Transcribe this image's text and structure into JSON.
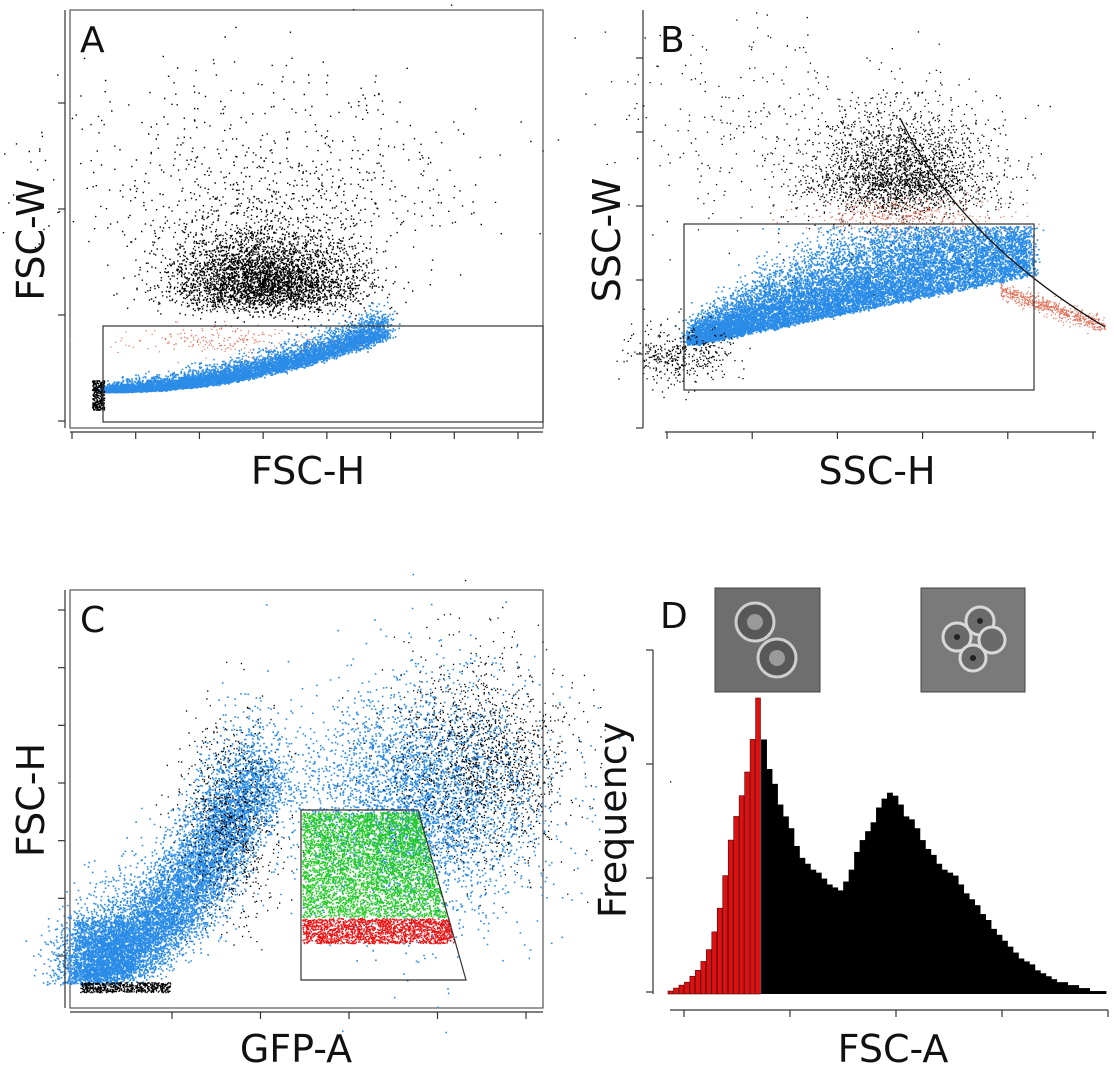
{
  "chart_data": [
    {
      "panel": "A",
      "type": "scatter",
      "xlabel": "FSC-H",
      "ylabel": "FSC-W",
      "x_ticks": 8,
      "y_ticks": 4,
      "colors": {
        "outside": "#000000",
        "gated": "#2b8ce8",
        "minor": "#e0705a"
      },
      "populations": [
        {
          "name": "",
          "color": "#000000",
          "center": [
            0.44,
            0.62
          ],
          "spread": [
            0.12,
            0.1
          ],
          "count": 2600
        },
        {
          "name": "",
          "color": "#2b8ce8",
          "center": [
            0.34,
            0.82
          ],
          "spread": [
            0.16,
            0.045
          ],
          "count": 2400
        }
      ],
      "gate": {
        "shape": "rectangle",
        "x": [
          0.07,
          1.0
        ],
        "y": [
          0.67,
          0.97
        ]
      }
    },
    {
      "panel": "B",
      "type": "scatter",
      "xlabel": "SSC-H",
      "ylabel": "SSC-W",
      "x_ticks": 6,
      "y_ticks": 6,
      "colors": {
        "outside": "#000000",
        "gated": "#2b8ce8",
        "minor": "#e0705a"
      },
      "gate": {
        "shape": "rectangle",
        "x": [
          0.04,
          0.85
        ],
        "y": [
          0.51,
          0.9
        ]
      }
    },
    {
      "panel": "C",
      "type": "scatter",
      "xlabel": "GFP-A",
      "ylabel": "FSC-H",
      "x_ticks": 5,
      "y_ticks": 7,
      "colors": {
        "outside": "#000000",
        "gated": "#2b8ce8",
        "high": "#22cc22",
        "low": "#ee1111"
      },
      "gate": {
        "shape": "polygon",
        "points": [
          [
            0.49,
            0.51
          ],
          [
            0.74,
            0.51
          ],
          [
            0.84,
            0.91
          ],
          [
            0.49,
            0.91
          ]
        ]
      }
    },
    {
      "panel": "D",
      "type": "bar",
      "xlabel": "FSC-A",
      "ylabel": "Frequency",
      "x_ticks": 5,
      "y_ticks": 4,
      "colors": {
        "selected": "#dd1111",
        "rest": "#000000"
      },
      "bins": 80,
      "selected_bins": 17,
      "values": [
        1,
        2,
        3,
        4,
        6,
        8,
        11,
        15,
        21,
        29,
        40,
        52,
        60,
        67,
        75,
        86,
        100,
        86,
        76,
        71,
        64,
        60,
        56,
        50,
        46,
        44,
        42,
        41,
        39,
        37,
        36,
        35,
        38,
        42,
        48,
        52,
        55,
        58,
        63,
        66,
        68,
        67,
        64,
        60,
        59,
        56,
        52,
        49,
        47,
        44,
        42,
        41,
        40,
        37,
        34,
        32,
        30,
        27,
        25,
        22,
        20,
        18,
        16,
        14,
        12,
        11,
        10,
        8,
        7,
        6,
        5,
        4,
        4,
        3,
        3,
        2,
        2,
        1,
        1,
        1
      ],
      "ylim": [
        0,
        100
      ]
    }
  ],
  "labels": {
    "A": "A",
    "B": "B",
    "C": "C",
    "D": "D",
    "A_x": "FSC-H",
    "A_y": "FSC-W",
    "B_x": "SSC-H",
    "B_y": "SSC-W",
    "C_x": "GFP-A",
    "C_y": "FSC-H",
    "D_x": "FSC-A",
    "D_y": "Frequency"
  }
}
